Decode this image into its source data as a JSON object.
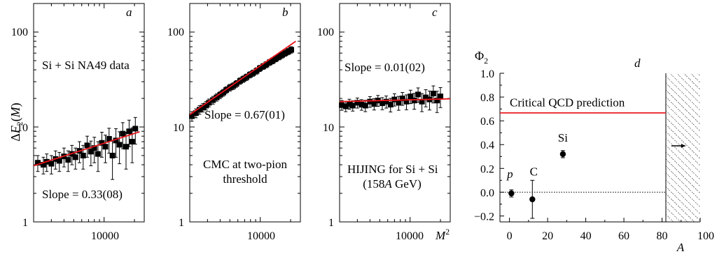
{
  "colors": {
    "fit": "#e8141a",
    "marker": "#000000"
  },
  "chart_data": [
    {
      "type": "scatter",
      "panel": "a",
      "ylabel": "ΔF2(M)",
      "yscale": "log",
      "xscale": "log",
      "ylim": [
        1,
        200
      ],
      "xlim": [
        2000,
        25000
      ],
      "yticks": [
        "1",
        "10",
        "100"
      ],
      "xticks": [
        "10000"
      ],
      "annotations": [
        "Si + Si NA49 data",
        "Slope = 0.33(08)"
      ],
      "fit_line": {
        "x": [
          2000,
          22500
        ],
        "y": [
          3.9,
          8.9
        ]
      },
      "series": [
        {
          "x": [
            2200,
            2500,
            2700,
            3000,
            3300,
            3600,
            4000,
            4400,
            4800,
            5200,
            5700,
            6200,
            6800,
            7400,
            8000,
            8700,
            9500,
            10300,
            11200,
            12100,
            13100,
            14200,
            15300,
            16500,
            17700,
            19000,
            20400
          ],
          "y": [
            4.2,
            4.0,
            4.3,
            4.1,
            4.6,
            4.4,
            4.9,
            4.5,
            5.2,
            4.8,
            5.6,
            5.0,
            6.4,
            5.5,
            6.0,
            5.2,
            6.8,
            6.2,
            7.5,
            5.0,
            7.2,
            6.5,
            8.5,
            6.2,
            9.0,
            7.0,
            9.6
          ],
          "err": [
            0.8,
            0.8,
            0.9,
            0.9,
            1.0,
            1.0,
            1.1,
            1.1,
            1.2,
            1.2,
            1.4,
            1.4,
            1.6,
            1.6,
            1.8,
            1.8,
            2.0,
            2.0,
            2.2,
            2.2,
            2.4,
            2.4,
            2.6,
            2.6,
            2.8,
            2.8,
            3.0
          ]
        }
      ]
    },
    {
      "type": "scatter",
      "panel": "b",
      "yscale": "log",
      "xscale": "log",
      "ylim": [
        1,
        200
      ],
      "xlim": [
        2000,
        25000
      ],
      "yticks": [
        "1",
        "10",
        "100"
      ],
      "xticks": [
        "10000"
      ],
      "annotations": [
        "Slope = 0.67(01)",
        "CMC at two-pion",
        "threshold"
      ],
      "fit_line": {
        "x": [
          2000,
          22500
        ],
        "y": [
          13.5,
          80
        ]
      },
      "series": [
        {
          "x": [
            2100,
            2300,
            2500,
            2700,
            2900,
            3100,
            3400,
            3700,
            4000,
            4300,
            4600,
            5000,
            5400,
            5800,
            6300,
            6800,
            7300,
            7900,
            8500,
            9200,
            9900,
            10700,
            11500,
            12400,
            13300,
            14300,
            15400,
            16500,
            17700,
            19000,
            20300
          ],
          "y": [
            13.0,
            14.0,
            15.2,
            16.0,
            16.8,
            18.0,
            19.2,
            20.5,
            21.8,
            23.0,
            24.5,
            26.0,
            27.0,
            28.5,
            30.5,
            32.0,
            33.5,
            35.5,
            37.0,
            39.0,
            41.5,
            43.5,
            45.5,
            48.0,
            50.0,
            52.5,
            55.0,
            57.5,
            60.0,
            62.5,
            65.0
          ],
          "err": [
            1.5,
            1.5,
            1.6,
            1.6,
            1.7,
            1.7,
            1.8,
            1.8,
            1.9,
            1.9,
            2.0,
            2.1,
            2.2,
            2.3,
            2.4,
            2.5,
            2.6,
            2.7,
            2.8,
            3.0,
            3.1,
            3.2,
            3.4,
            3.5,
            3.7,
            3.9,
            4.1,
            4.3,
            4.5,
            4.7,
            5.0
          ]
        }
      ]
    },
    {
      "type": "scatter",
      "panel": "c",
      "yscale": "log",
      "xscale": "log",
      "ylim": [
        1,
        200
      ],
      "xlim": [
        2000,
        25000
      ],
      "yticks": [
        "1",
        "10",
        "100"
      ],
      "xticks": [
        "10000"
      ],
      "xlabel": "M 2",
      "annotations": [
        "Slope = 0.01(02)",
        "HIJING for Si + Si",
        "(158A GeV)"
      ],
      "fit_line": {
        "x": [
          2000,
          25000
        ],
        "y": [
          18.5,
          19.8
        ]
      },
      "series": [
        {
          "x": [
            2100,
            2300,
            2500,
            2700,
            3000,
            3300,
            3600,
            4000,
            4400,
            4800,
            5300,
            5800,
            6400,
            7000,
            7700,
            8400,
            9200,
            10100,
            11000,
            12000,
            13100,
            14300,
            15600,
            17000,
            18500,
            20000
          ],
          "y": [
            17.0,
            16.5,
            17.5,
            16.8,
            18.0,
            17.2,
            16.8,
            18.5,
            17.5,
            19.0,
            17.8,
            18.5,
            17.2,
            19.5,
            18.0,
            20.0,
            18.5,
            21.0,
            19.0,
            22.0,
            18.5,
            20.5,
            19.5,
            22.5,
            19.0,
            21.0
          ],
          "err": [
            2.0,
            2.0,
            2.1,
            2.1,
            2.2,
            2.2,
            2.3,
            2.4,
            2.4,
            2.5,
            2.6,
            2.7,
            2.8,
            2.9,
            3.0,
            3.1,
            3.3,
            3.4,
            3.6,
            3.8,
            4.0,
            4.2,
            4.4,
            4.6,
            4.8,
            5.0
          ]
        }
      ]
    },
    {
      "type": "scatter",
      "panel": "d",
      "ylabel": "Φ2",
      "xlabel": "A",
      "xlim": [
        -5,
        100
      ],
      "ylim": [
        -0.25,
        1.0
      ],
      "xticks": [
        "0",
        "20",
        "40",
        "60",
        "80",
        "100"
      ],
      "yticks": [
        "−0.2",
        "0.0",
        "0.2",
        "0.4",
        "0.6",
        "0.8",
        "1.0"
      ],
      "critical_value": 0.667,
      "critical_label": "Critical QCD prediction",
      "excluded_from_x": 82,
      "points": [
        {
          "label": "p",
          "x": 1,
          "y": -0.01,
          "err": 0.03
        },
        {
          "label": "C",
          "x": 12,
          "y": -0.06,
          "err": 0.16
        },
        {
          "label": "Si",
          "x": 28,
          "y": 0.32,
          "err": 0.03
        }
      ],
      "arrow_point": {
        "x": 90,
        "y": 0.39
      }
    }
  ]
}
